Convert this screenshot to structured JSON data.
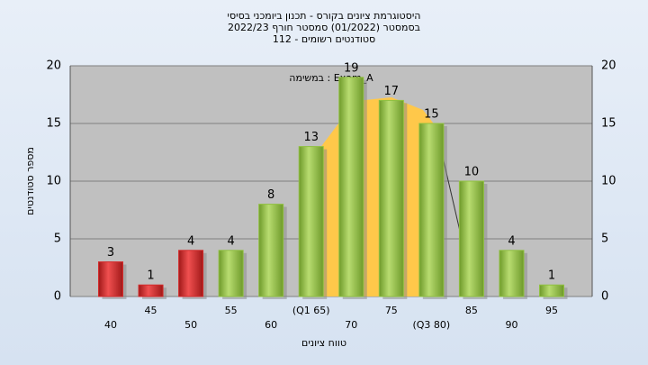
{
  "chart_data": {
    "type": "bar",
    "title": "היסטוגרמת ציונים בקורס - תכנון ביומכני בסיסי",
    "subtitles": [
      "בסמסטר  (01/2022)  סמסטר חורף 2022/23",
      "סטודנטים רשומים - 112"
    ],
    "annotation": "במשימה : Exam_A",
    "x_label": "טווח ציונים",
    "y_label": "מספר סטודנטים",
    "categories": [
      "40",
      "45",
      "50",
      "55",
      "60",
      "(Q1 65)",
      "70",
      "75",
      "(Q3 80)",
      "85",
      "90",
      "95"
    ],
    "values": [
      3,
      1,
      4,
      4,
      8,
      13,
      19,
      17,
      15,
      10,
      4,
      1
    ],
    "colors": [
      "#d42a2a",
      "#d42a2a",
      "#d42a2a",
      "#8fc040",
      "#8fc040",
      "#8fc040",
      "#8fc040",
      "#8fc040",
      "#8fc040",
      "#8fc040",
      "#8fc040",
      "#8fc040"
    ],
    "ylim": [
      0,
      20
    ],
    "yticks": [
      0,
      5,
      10,
      15,
      20
    ],
    "grid": true
  }
}
